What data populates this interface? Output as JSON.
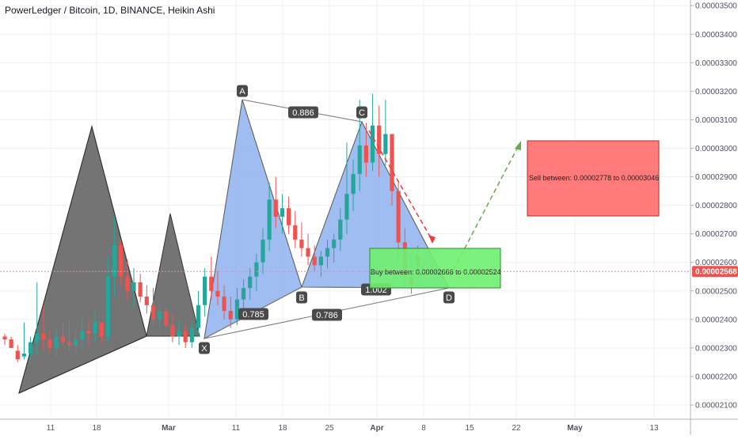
{
  "window": {
    "title": "PowerLedger / Bitcoin, 1D, BINANCE, Heikin Ashi"
  },
  "colors": {
    "up": "#26a69a",
    "down": "#ef5350",
    "grid": "#eef0f3",
    "pattern_dark": "#555555",
    "pattern_blue": "#8fb1ee",
    "sell_box": "#ff7b7b",
    "buy_box": "#6ff06f",
    "price_line": "#f48a8a",
    "price_badge": "#ef5350"
  },
  "chart_data": {
    "type": "candlestick",
    "title": "PowerLedger / Bitcoin, 1D, BINANCE, Heikin Ashi",
    "x_ticks": [
      "11",
      "18",
      "Mar",
      "11",
      "18",
      "25",
      "Apr",
      "8",
      "15",
      "22",
      "May",
      "13"
    ],
    "y_ticks": [
      "0.00003500",
      "0.00003400",
      "0.00003300",
      "0.00003200",
      "0.00003100",
      "0.00003000",
      "0.00002900",
      "0.00002800",
      "0.00002700",
      "0.00002600",
      "0.00002500",
      "0.00002400",
      "0.00002300",
      "0.00002200",
      "0.00002100"
    ],
    "ylim": [
      2.05e-05,
      3.52e-05
    ],
    "last_price": "0.00002568",
    "grid": true,
    "candles": [
      [
        2.34e-05,
        2.35e-05,
        2.31e-05,
        2.33e-05
      ],
      [
        2.33e-05,
        2.34e-05,
        2.3e-05,
        2.3e-05
      ],
      [
        2.29e-05,
        2.31e-05,
        2.25e-05,
        2.26e-05
      ],
      [
        2.27e-05,
        2.39e-05,
        2.26e-05,
        2.28e-05
      ],
      [
        2.28e-05,
        2.34e-05,
        2.26e-05,
        2.32e-05
      ],
      [
        2.32e-05,
        2.53e-05,
        2.28e-05,
        2.35e-05
      ],
      [
        2.35e-05,
        2.45e-05,
        2.29e-05,
        2.33e-05
      ],
      [
        2.33e-05,
        2.36e-05,
        2.28e-05,
        2.3e-05
      ],
      [
        2.3e-05,
        2.37e-05,
        2.27e-05,
        2.34e-05
      ],
      [
        2.34e-05,
        2.39e-05,
        2.31e-05,
        2.32e-05
      ],
      [
        2.32e-05,
        2.4e-05,
        2.29e-05,
        2.31e-05
      ],
      [
        2.31e-05,
        2.36e-05,
        2.28e-05,
        2.33e-05
      ],
      [
        2.33e-05,
        2.41e-05,
        2.29e-05,
        2.36e-05
      ],
      [
        2.36e-05,
        2.4e-05,
        2.31e-05,
        2.35e-05
      ],
      [
        2.35e-05,
        2.43e-05,
        2.32e-05,
        2.39e-05
      ],
      [
        2.39e-05,
        2.38e-05,
        2.32e-05,
        2.34e-05
      ],
      [
        2.34e-05,
        2.62e-05,
        2.32e-05,
        2.55e-05
      ],
      [
        2.55e-05,
        2.76e-05,
        2.48e-05,
        2.66e-05
      ],
      [
        2.66e-05,
        2.68e-05,
        2.52e-05,
        2.55e-05
      ],
      [
        2.55e-05,
        2.61e-05,
        2.47e-05,
        2.5e-05
      ],
      [
        2.5e-05,
        2.58e-05,
        2.44e-05,
        2.53e-05
      ],
      [
        2.53e-05,
        2.56e-05,
        2.46e-05,
        2.48e-05
      ],
      [
        2.48e-05,
        2.52e-05,
        2.42e-05,
        2.45e-05
      ],
      [
        2.45e-05,
        2.51e-05,
        2.38e-05,
        2.4e-05
      ],
      [
        2.4e-05,
        2.45e-05,
        2.36e-05,
        2.43e-05
      ],
      [
        2.43e-05,
        2.44e-05,
        2.37e-05,
        2.38e-05
      ],
      [
        2.38e-05,
        2.42e-05,
        2.32e-05,
        2.34e-05
      ],
      [
        2.34e-05,
        2.4e-05,
        2.31e-05,
        2.36e-05
      ],
      [
        2.36e-05,
        2.38e-05,
        2.3e-05,
        2.32e-05
      ],
      [
        2.32e-05,
        2.39e-05,
        2.3e-05,
        2.37e-05
      ],
      [
        2.37e-05,
        2.5e-05,
        2.34e-05,
        2.45e-05
      ],
      [
        2.45e-05,
        2.58e-05,
        2.41e-05,
        2.55e-05
      ],
      [
        2.55e-05,
        2.62e-05,
        2.47e-05,
        2.5e-05
      ],
      [
        2.5e-05,
        2.57e-05,
        2.45e-05,
        2.48e-05
      ],
      [
        2.48e-05,
        2.52e-05,
        2.4e-05,
        2.43e-05
      ],
      [
        2.43e-05,
        2.48e-05,
        2.37e-05,
        2.4e-05
      ],
      [
        2.4e-05,
        2.51e-05,
        2.38e-05,
        2.47e-05
      ],
      [
        2.47e-05,
        2.54e-05,
        2.43e-05,
        2.51e-05
      ],
      [
        2.51e-05,
        2.58e-05,
        2.47e-05,
        2.55e-05
      ],
      [
        2.55e-05,
        2.63e-05,
        2.5e-05,
        2.6e-05
      ],
      [
        2.6e-05,
        2.72e-05,
        2.56e-05,
        2.68e-05
      ],
      [
        2.68e-05,
        2.88e-05,
        2.64e-05,
        2.82e-05
      ],
      [
        2.82e-05,
        2.9e-05,
        2.72e-05,
        2.76e-05
      ],
      [
        2.76e-05,
        2.84e-05,
        2.7e-05,
        2.79e-05
      ],
      [
        2.79e-05,
        2.83e-05,
        2.7e-05,
        2.73e-05
      ],
      [
        2.73e-05,
        2.78e-05,
        2.65e-05,
        2.68e-05
      ],
      [
        2.68e-05,
        2.74e-05,
        2.62e-05,
        2.65e-05
      ],
      [
        2.65e-05,
        2.7e-05,
        2.59e-05,
        2.62e-05
      ],
      [
        2.62e-05,
        2.66e-05,
        2.57e-05,
        2.59e-05
      ],
      [
        2.59e-05,
        2.64e-05,
        2.55e-05,
        2.62e-05
      ],
      [
        2.62e-05,
        2.68e-05,
        2.58e-05,
        2.65e-05
      ],
      [
        2.65e-05,
        2.7e-05,
        2.6e-05,
        2.68e-05
      ],
      [
        2.68e-05,
        2.79e-05,
        2.64e-05,
        2.75e-05
      ],
      [
        2.75e-05,
        3.02e-05,
        2.7e-05,
        2.84e-05
      ],
      [
        2.84e-05,
        2.96e-05,
        2.78e-05,
        2.91e-05
      ],
      [
        2.91e-05,
        3.17e-05,
        2.85e-05,
        3.01e-05
      ],
      [
        3.01e-05,
        3.09e-05,
        2.9e-05,
        2.95e-05
      ],
      [
        2.95e-05,
        3.19e-05,
        2.92e-05,
        3.08e-05
      ],
      [
        3.08e-05,
        3.15e-05,
        2.9e-05,
        2.98e-05
      ],
      [
        2.98e-05,
        3.17e-05,
        2.94e-05,
        3.05e-05
      ],
      [
        3.05e-05,
        3.05e-05,
        2.8e-05,
        2.85e-05
      ],
      [
        2.85e-05,
        2.88e-05,
        2.62e-05,
        2.67e-05
      ],
      [
        2.67e-05,
        2.72e-05,
        2.52e-05,
        2.55e-05
      ],
      [
        2.55e-05,
        2.62e-05,
        2.49e-05,
        2.52e-05
      ],
      [
        2.62e-05,
        2.66e-05,
        2.56e-05,
        2.59e-05
      ]
    ],
    "pattern_1": {
      "type": "harmonic",
      "note": "dark triangles"
    },
    "pattern_2": {
      "type": "harmonic",
      "points": [
        "X",
        "A",
        "B",
        "C",
        "D"
      ],
      "ratios": [
        "0.886",
        "0.785",
        "0.786",
        "1.002"
      ]
    },
    "annotations": {
      "sell_box": "Sell between: 0.00002778 to 0.00003046",
      "buy_box": "Buy between: 0.00002666 to 0.00002524"
    }
  }
}
